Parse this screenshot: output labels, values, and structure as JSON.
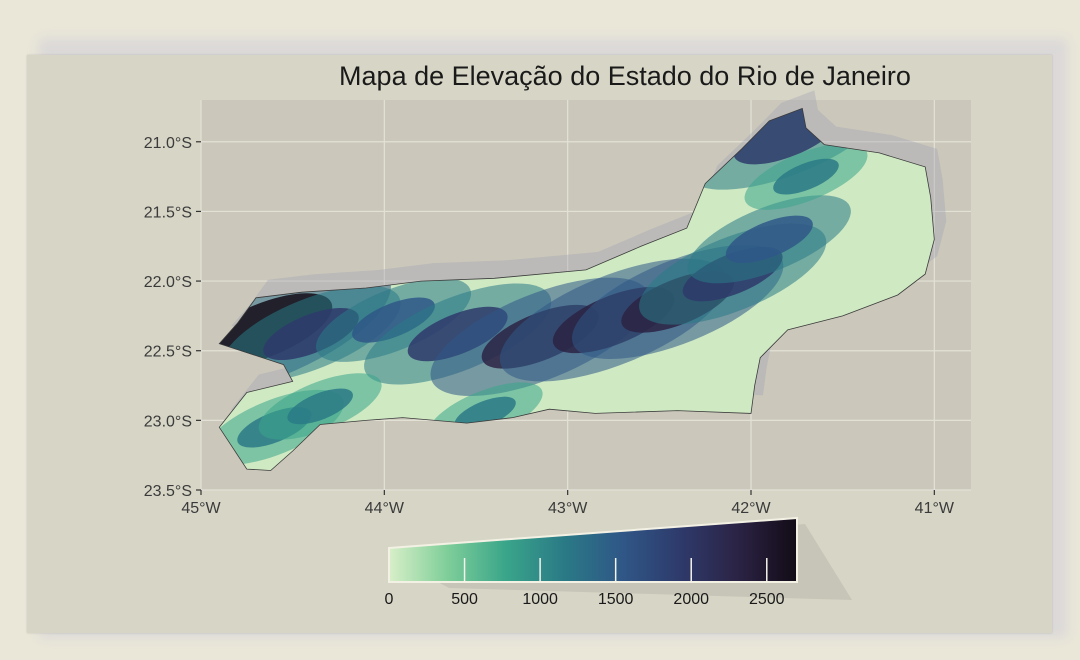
{
  "title": "Mapa de Elevação do Estado do Rio de Janeiro",
  "chart_data": {
    "type": "heatmap",
    "title": "Mapa de Elevação do Estado do Rio de Janeiro",
    "xlabel": "",
    "ylabel": "",
    "xlim": [
      -45.0,
      -40.8
    ],
    "ylim": [
      -23.5,
      -20.7
    ],
    "x_ticks": [
      {
        "value": -45,
        "label": "45°W"
      },
      {
        "value": -44,
        "label": "44°W"
      },
      {
        "value": -43,
        "label": "43°W"
      },
      {
        "value": -42,
        "label": "42°W"
      },
      {
        "value": -41,
        "label": "41°W"
      }
    ],
    "y_ticks": [
      {
        "value": -21.0,
        "label": "21.0°S"
      },
      {
        "value": -21.5,
        "label": "21.5°S"
      },
      {
        "value": -22.0,
        "label": "22.0°S"
      },
      {
        "value": -22.5,
        "label": "22.5°S"
      },
      {
        "value": -23.0,
        "label": "23.0°S"
      },
      {
        "value": -23.5,
        "label": "23.5°S"
      }
    ],
    "grid": true,
    "legend": {
      "placement": "bottom",
      "range": [
        0,
        2700
      ],
      "ticks": [
        {
          "value": 0,
          "label": "0"
        },
        {
          "value": 500,
          "label": "500"
        },
        {
          "value": 1000,
          "label": "1000"
        },
        {
          "value": 1500,
          "label": "1500"
        },
        {
          "value": 2000,
          "label": "2000"
        },
        {
          "value": 2500,
          "label": "2500"
        }
      ],
      "colors": [
        "#d8efc9",
        "#7fce99",
        "#3aa58a",
        "#2a7a86",
        "#2f5787",
        "#2e3a6b",
        "#2b2344",
        "#120b16"
      ]
    },
    "region_outline": [
      [
        -41.72,
        -20.76
      ],
      [
        -41.7,
        -20.9
      ],
      [
        -41.6,
        -21.02
      ],
      [
        -41.3,
        -21.08
      ],
      [
        -41.05,
        -21.18
      ],
      [
        -41.02,
        -21.4
      ],
      [
        -41.0,
        -21.7
      ],
      [
        -41.05,
        -21.95
      ],
      [
        -41.2,
        -22.1
      ],
      [
        -41.5,
        -22.25
      ],
      [
        -41.8,
        -22.35
      ],
      [
        -41.95,
        -22.55
      ],
      [
        -41.98,
        -22.75
      ],
      [
        -42.0,
        -22.95
      ],
      [
        -42.4,
        -22.93
      ],
      [
        -42.85,
        -22.95
      ],
      [
        -43.1,
        -22.92
      ],
      [
        -43.3,
        -22.98
      ],
      [
        -43.55,
        -23.02
      ],
      [
        -43.9,
        -22.98
      ],
      [
        -44.1,
        -23.0
      ],
      [
        -44.35,
        -23.03
      ],
      [
        -44.5,
        -23.22
      ],
      [
        -44.62,
        -23.36
      ],
      [
        -44.75,
        -23.35
      ],
      [
        -44.9,
        -23.05
      ],
      [
        -44.75,
        -22.8
      ],
      [
        -44.5,
        -22.72
      ],
      [
        -44.55,
        -22.6
      ],
      [
        -44.9,
        -22.45
      ],
      [
        -44.8,
        -22.3
      ],
      [
        -44.7,
        -22.12
      ],
      [
        -44.45,
        -22.08
      ],
      [
        -44.1,
        -22.05
      ],
      [
        -43.8,
        -22.0
      ],
      [
        -43.4,
        -21.98
      ],
      [
        -42.9,
        -21.92
      ],
      [
        -42.6,
        -21.75
      ],
      [
        -42.35,
        -21.62
      ],
      [
        -42.25,
        -21.3
      ],
      [
        -42.05,
        -21.05
      ],
      [
        -41.9,
        -20.85
      ]
    ],
    "elevation_peaks": [
      {
        "lon": -44.65,
        "lat": -22.35,
        "elev": 2500
      },
      {
        "lon": -44.4,
        "lat": -22.38,
        "elev": 1600
      },
      {
        "lon": -43.95,
        "lat": -22.28,
        "elev": 1300
      },
      {
        "lon": -43.6,
        "lat": -22.38,
        "elev": 1700
      },
      {
        "lon": -43.15,
        "lat": -22.4,
        "elev": 2100
      },
      {
        "lon": -42.75,
        "lat": -22.28,
        "elev": 2200
      },
      {
        "lon": -42.4,
        "lat": -22.15,
        "elev": 2000
      },
      {
        "lon": -42.1,
        "lat": -21.95,
        "elev": 1700
      },
      {
        "lon": -41.9,
        "lat": -21.7,
        "elev": 1400
      },
      {
        "lon": -41.8,
        "lat": -20.95,
        "elev": 1900
      },
      {
        "lon": -41.7,
        "lat": -21.25,
        "elev": 900
      },
      {
        "lon": -44.6,
        "lat": -23.05,
        "elev": 1100
      },
      {
        "lon": -44.35,
        "lat": -22.9,
        "elev": 900
      },
      {
        "lon": -43.45,
        "lat": -22.95,
        "elev": 800
      }
    ]
  }
}
